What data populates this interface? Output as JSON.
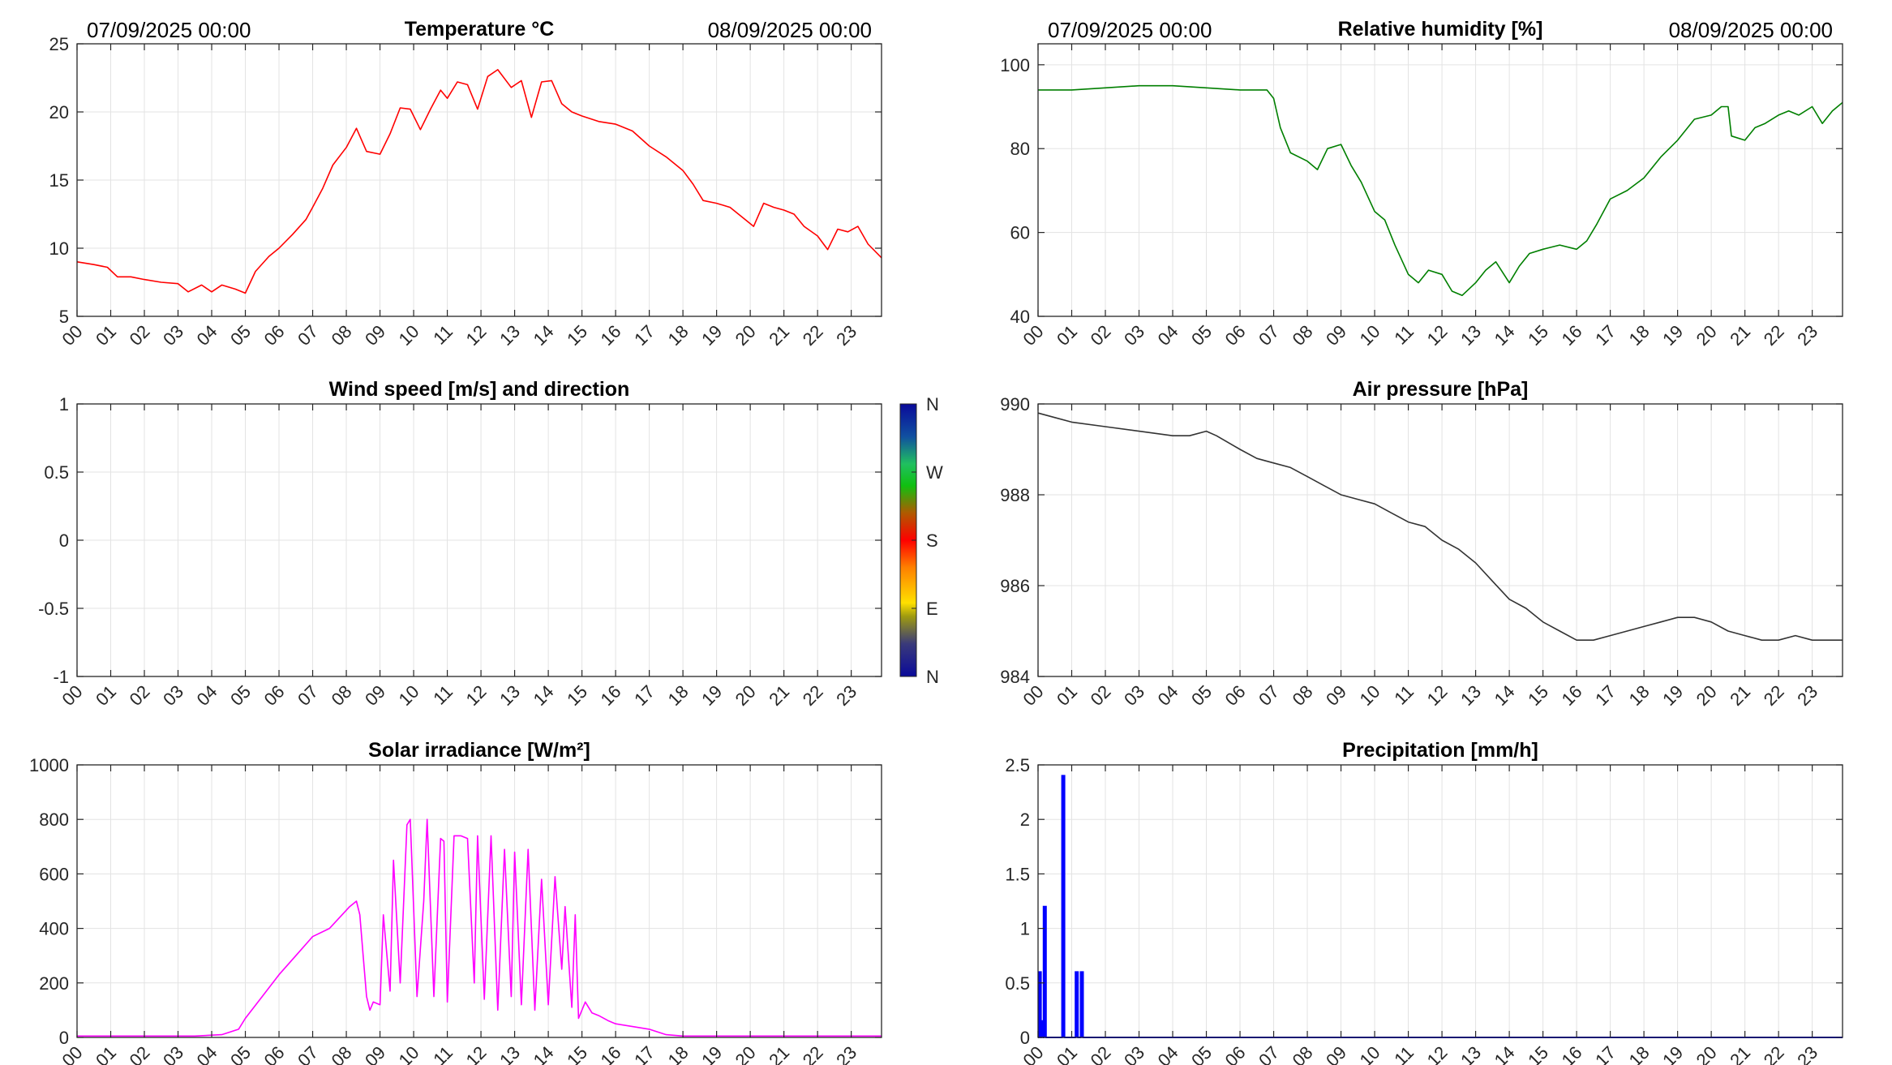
{
  "header": {
    "start_date": "07/09/2025 00:00",
    "end_date": "08/09/2025 00:00"
  },
  "hour_labels": [
    "00",
    "01",
    "02",
    "03",
    "04",
    "05",
    "06",
    "07",
    "08",
    "09",
    "10",
    "11",
    "12",
    "13",
    "14",
    "15",
    "16",
    "17",
    "18",
    "19",
    "20",
    "21",
    "22",
    "23"
  ],
  "chart_data": [
    {
      "id": "temperature",
      "type": "line",
      "title": "Temperature °C",
      "color": "#ff0000",
      "xlim": [
        0,
        23.9
      ],
      "ylim": [
        5,
        25
      ],
      "yticks": [
        5,
        10,
        15,
        20,
        25
      ],
      "ytick_labels": [
        "5",
        "10",
        "15",
        "20",
        "25"
      ],
      "grid": true,
      "show_dates": true,
      "x": [
        0,
        0.5,
        0.9,
        1.2,
        1.6,
        2.0,
        2.5,
        3.0,
        3.3,
        3.7,
        4.0,
        4.3,
        4.7,
        5.0,
        5.3,
        5.7,
        6.0,
        6.4,
        6.8,
        7.0,
        7.3,
        7.6,
        8.0,
        8.3,
        8.6,
        9.0,
        9.3,
        9.6,
        9.9,
        10.2,
        10.5,
        10.8,
        11.0,
        11.3,
        11.6,
        11.9,
        12.2,
        12.5,
        12.9,
        13.2,
        13.5,
        13.8,
        14.1,
        14.4,
        14.7,
        15.0,
        15.5,
        16.0,
        16.5,
        17.0,
        17.5,
        18.0,
        18.3,
        18.6,
        19.0,
        19.4,
        19.8,
        20.1,
        20.4,
        20.7,
        21.0,
        21.3,
        21.6,
        22.0,
        22.3,
        22.6,
        22.9,
        23.2,
        23.5,
        23.9
      ],
      "values": [
        9.0,
        8.8,
        8.6,
        7.9,
        7.9,
        7.7,
        7.5,
        7.4,
        6.8,
        7.3,
        6.8,
        7.3,
        7.0,
        6.7,
        8.3,
        9.4,
        10.0,
        11.0,
        12.1,
        13.0,
        14.4,
        16.1,
        17.4,
        18.8,
        17.1,
        16.9,
        18.4,
        20.3,
        20.2,
        18.7,
        20.2,
        21.6,
        21.0,
        22.2,
        22.0,
        20.2,
        22.6,
        23.1,
        21.8,
        22.3,
        19.6,
        22.2,
        22.3,
        20.6,
        20.0,
        19.7,
        19.3,
        19.1,
        18.6,
        17.5,
        16.7,
        15.7,
        14.7,
        13.5,
        13.3,
        13.0,
        12.2,
        11.6,
        13.3,
        13.0,
        12.8,
        12.5,
        11.6,
        10.9,
        9.9,
        11.4,
        11.2,
        11.6,
        10.3,
        9.3
      ]
    },
    {
      "id": "humidity",
      "type": "line",
      "title": "Relative humidity [%]",
      "color": "#007f00",
      "xlim": [
        0,
        23.9
      ],
      "ylim": [
        40,
        105
      ],
      "yticks": [
        40,
        60,
        80,
        100
      ],
      "ytick_labels": [
        "40",
        "60",
        "80",
        "100"
      ],
      "grid": true,
      "show_dates": true,
      "x": [
        0,
        1,
        2,
        3,
        4,
        5,
        6,
        6.8,
        7.0,
        7.2,
        7.5,
        8.0,
        8.3,
        8.6,
        9.0,
        9.3,
        9.6,
        10.0,
        10.3,
        10.6,
        11.0,
        11.3,
        11.6,
        12.0,
        12.3,
        12.6,
        13.0,
        13.3,
        13.6,
        14.0,
        14.3,
        14.6,
        15.0,
        15.5,
        16.0,
        16.3,
        16.6,
        17.0,
        17.5,
        18.0,
        18.5,
        19.0,
        19.5,
        20.0,
        20.3,
        20.5,
        20.6,
        21.0,
        21.3,
        21.6,
        22.0,
        22.3,
        22.6,
        23.0,
        23.3,
        23.6,
        23.9
      ],
      "values": [
        94,
        94,
        94.5,
        95,
        95,
        94.5,
        94,
        94,
        92,
        85,
        79,
        77,
        75,
        80,
        81,
        76,
        72,
        65,
        63,
        57,
        50,
        48,
        51,
        50,
        46,
        45,
        48,
        51,
        53,
        48,
        52,
        55,
        56,
        57,
        56,
        58,
        62,
        68,
        70,
        73,
        78,
        82,
        87,
        88,
        90,
        90,
        83,
        82,
        85,
        86,
        88,
        89,
        88,
        90,
        86,
        89,
        91
      ]
    },
    {
      "id": "wind",
      "type": "line",
      "title": "Wind speed [m/s] and direction",
      "color": "#000000",
      "xlim": [
        0,
        23.9
      ],
      "ylim": [
        -1,
        1
      ],
      "yticks": [
        -1,
        -0.5,
        0,
        0.5,
        1
      ],
      "ytick_labels": [
        "-1",
        "-0.5",
        "0",
        "0.5",
        "1"
      ],
      "grid": true,
      "show_dates": false,
      "x": [],
      "values": [],
      "colorbar": {
        "labels": [
          "N",
          "E",
          "S",
          "W",
          "N"
        ],
        "colors": [
          "#0000a0",
          "#ffe000",
          "#ff0000",
          "#00b000",
          "#0000a0"
        ]
      }
    },
    {
      "id": "pressure",
      "type": "line",
      "title": "Air pressure [hPa]",
      "color": "#333333",
      "xlim": [
        0,
        23.9
      ],
      "ylim": [
        984,
        990
      ],
      "yticks": [
        984,
        986,
        988,
        990
      ],
      "ytick_labels": [
        "984",
        "986",
        "988",
        "990"
      ],
      "grid": true,
      "show_dates": false,
      "x": [
        0,
        0.5,
        1,
        2,
        3,
        4,
        4.5,
        5,
        5.3,
        6,
        6.5,
        7,
        7.5,
        8,
        8.5,
        9,
        9.5,
        10,
        10.5,
        11,
        11.5,
        12,
        12.5,
        13,
        13.5,
        14,
        14.5,
        15,
        15.5,
        16,
        16.5,
        17,
        17.5,
        18,
        18.5,
        19,
        19.5,
        20,
        20.5,
        21,
        21.5,
        22,
        22.5,
        23,
        23.5,
        23.9
      ],
      "values": [
        989.8,
        989.7,
        989.6,
        989.5,
        989.4,
        989.3,
        989.3,
        989.4,
        989.3,
        989.0,
        988.8,
        988.7,
        988.6,
        988.4,
        988.2,
        988.0,
        987.9,
        987.8,
        987.6,
        987.4,
        987.3,
        987.0,
        986.8,
        986.5,
        986.1,
        985.7,
        985.5,
        985.2,
        985.0,
        984.8,
        984.8,
        984.9,
        985.0,
        985.1,
        985.2,
        985.3,
        985.3,
        985.2,
        985.0,
        984.9,
        984.8,
        984.8,
        984.9,
        984.8,
        984.8,
        984.8
      ]
    },
    {
      "id": "solar",
      "type": "line",
      "title": "Solar irradiance [W/m²]",
      "color": "#ff00ff",
      "xlim": [
        0,
        23.9
      ],
      "ylim": [
        0,
        1000
      ],
      "yticks": [
        0,
        200,
        400,
        600,
        800,
        1000
      ],
      "ytick_labels": [
        "0",
        "200",
        "400",
        "600",
        "800",
        "1000"
      ],
      "grid": true,
      "show_dates": false,
      "x": [
        0,
        3.5,
        4.3,
        4.8,
        5.0,
        5.5,
        6.0,
        6.5,
        7.0,
        7.5,
        7.8,
        8.1,
        8.3,
        8.4,
        8.5,
        8.6,
        8.7,
        8.8,
        9.0,
        9.1,
        9.3,
        9.4,
        9.6,
        9.8,
        9.9,
        10.1,
        10.3,
        10.4,
        10.6,
        10.8,
        10.9,
        11.0,
        11.2,
        11.4,
        11.6,
        11.8,
        11.9,
        12.1,
        12.3,
        12.5,
        12.7,
        12.9,
        13.0,
        13.2,
        13.4,
        13.6,
        13.8,
        14.0,
        14.2,
        14.4,
        14.5,
        14.7,
        14.8,
        14.9,
        15.1,
        15.3,
        15.5,
        15.8,
        16.0,
        16.5,
        17.0,
        17.5,
        18.0,
        20.0,
        23.9
      ],
      "values": [
        5,
        5,
        10,
        30,
        70,
        150,
        230,
        300,
        370,
        400,
        440,
        480,
        500,
        450,
        300,
        150,
        100,
        130,
        120,
        450,
        170,
        650,
        200,
        780,
        800,
        150,
        500,
        800,
        150,
        730,
        720,
        130,
        740,
        740,
        730,
        200,
        740,
        140,
        740,
        100,
        690,
        150,
        680,
        120,
        690,
        100,
        580,
        120,
        590,
        250,
        480,
        110,
        450,
        70,
        130,
        90,
        80,
        60,
        50,
        40,
        30,
        10,
        5,
        5,
        5
      ]
    },
    {
      "id": "precipitation",
      "type": "bar",
      "title": "Precipitation [mm/h]",
      "color": "#0000ff",
      "xlim": [
        0,
        23.9
      ],
      "ylim": [
        0,
        2.5
      ],
      "yticks": [
        0,
        0.5,
        1,
        1.5,
        2,
        2.5
      ],
      "ytick_labels": [
        "0",
        "0.5",
        "1",
        "1.5",
        "2",
        "2.5"
      ],
      "grid": true,
      "show_dates": false,
      "x": [
        0.05,
        0.12,
        0.2,
        0.75,
        1.15,
        1.3
      ],
      "values": [
        0.6,
        0.15,
        1.2,
        2.4,
        0.6,
        0.6
      ]
    }
  ]
}
